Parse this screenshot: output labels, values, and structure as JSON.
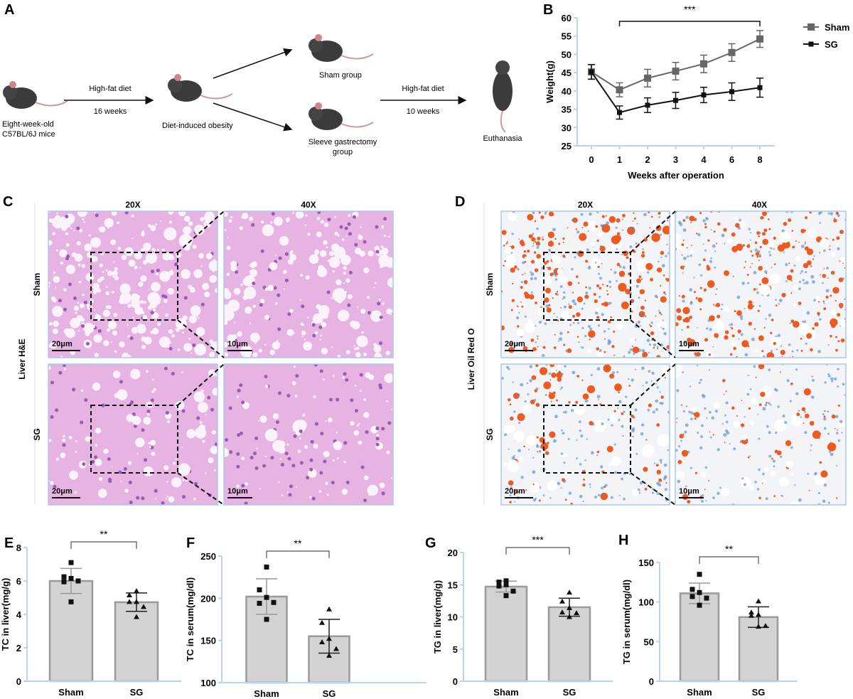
{
  "panels": {
    "A": "A",
    "B": "B",
    "C": "C",
    "D": "D",
    "E": "E",
    "F": "F",
    "G": "G",
    "H": "H"
  },
  "schematic": {
    "start_line1": "Eight-week-old",
    "start_line2": "C57BL/6J mice",
    "arrow1_top": "High-fat diet",
    "arrow1_bottom": "16 weeks",
    "obesity": "Diet-induced obesity",
    "sham_group": "Sham group",
    "sg_line1": "Sleeve gastrectomy",
    "sg_line2": "group",
    "arrow2_top": "High-fat diet",
    "arrow2_bottom": "10 weeks",
    "end": "Euthanasia"
  },
  "histology": {
    "he": {
      "title": "Liver H&E",
      "col1": "20X",
      "col2": "40X",
      "row1": "Sham",
      "row2": "SG",
      "scale20": "20μm",
      "scale10": "10μm"
    },
    "oro": {
      "title": "Liver Oil Red O",
      "col1": "20X",
      "col2": "40X",
      "row1": "Sham",
      "row2": "SG",
      "scale20": "20μm",
      "scale10": "10μm"
    }
  },
  "colors": {
    "sham_line": "#666666",
    "sg_line": "#111111",
    "bar_fill": "#d3d3d3",
    "bar_edge": "#9a9a9a",
    "axis": "#b9d3f0",
    "he_bg": "#e6b3e3",
    "oro_bg": "#f2f4f8",
    "oro_drop": "#f05a1e",
    "oro_blue": "#4a86c5"
  },
  "chart_data": [
    {
      "id": "B",
      "type": "line",
      "title": "",
      "xlabel": "Weeks after operation",
      "ylabel": "Weight(g)",
      "x": [
        "0",
        "1",
        "2",
        "3",
        "4",
        "6",
        "8"
      ],
      "ylim": [
        25,
        60
      ],
      "yticks": [
        "25",
        "30",
        "35",
        "40",
        "45",
        "50",
        "55",
        "60"
      ],
      "series": [
        {
          "name": "Sham",
          "values": [
            45.2,
            40.3,
            43.5,
            45.4,
            47.4,
            50.5,
            54.2
          ],
          "errors": [
            2.0,
            1.9,
            2.4,
            2.4,
            2.4,
            2.4,
            2.3
          ]
        },
        {
          "name": "SG",
          "values": [
            45.2,
            34.1,
            36.1,
            37.4,
            38.9,
            39.8,
            40.9
          ],
          "errors": [
            2.0,
            1.8,
            2.0,
            2.2,
            2.1,
            2.4,
            2.6
          ]
        }
      ],
      "significance": "***",
      "legend": "top-right"
    },
    {
      "id": "E",
      "type": "bar",
      "ylabel": "TC in liver(mg/g)",
      "categories": [
        "Sham",
        "SG"
      ],
      "ylim": [
        0,
        8
      ],
      "yticks": [
        "0",
        "2",
        "4",
        "6",
        "8"
      ],
      "values": [
        6.0,
        4.73
      ],
      "errors": [
        0.75,
        0.55
      ],
      "points": [
        [
          7.1,
          6.25,
          6.15,
          5.95,
          6.0,
          4.75
        ],
        [
          5.4,
          5.15,
          4.75,
          4.75,
          4.45,
          3.85
        ]
      ],
      "significance": "**"
    },
    {
      "id": "F",
      "type": "bar",
      "ylabel": "TC in serum(mg/dl)",
      "categories": [
        "Sham",
        "SG"
      ],
      "ylim": [
        100,
        250
      ],
      "yticks": [
        "100",
        "150",
        "200",
        "250"
      ],
      "values": [
        202,
        155
      ],
      "errors": [
        21,
        20
      ],
      "points": [
        [
          237,
          210,
          201,
          194,
          195,
          175
        ],
        [
          187,
          171,
          152,
          148,
          140,
          132
        ]
      ],
      "significance": "**"
    },
    {
      "id": "G",
      "type": "bar",
      "ylabel": "TG in liver(mg/g)",
      "categories": [
        "Sham",
        "SG"
      ],
      "ylim": [
        0,
        20
      ],
      "yticks": [
        "0",
        "5",
        "10",
        "15",
        "20"
      ],
      "values": [
        14.7,
        11.5
      ],
      "errors": [
        0.85,
        1.4
      ],
      "points": [
        [
          15.6,
          15.4,
          15.0,
          14.8,
          14.0,
          13.3
        ],
        [
          13.8,
          12.4,
          11.4,
          10.7,
          10.6,
          10.0
        ]
      ],
      "significance": "***"
    },
    {
      "id": "H",
      "type": "bar",
      "ylabel": "TG in serum(mg/dl)",
      "categories": [
        "Sham",
        "SG"
      ],
      "ylim": [
        0,
        150
      ],
      "yticks": [
        "0",
        "50",
        "100",
        "150"
      ],
      "values": [
        111,
        81
      ],
      "errors": [
        13,
        13
      ],
      "points": [
        [
          135,
          116,
          112,
          107,
          105,
          96
        ],
        [
          101,
          87,
          84,
          83,
          70,
          69
        ]
      ],
      "significance": "**"
    }
  ]
}
